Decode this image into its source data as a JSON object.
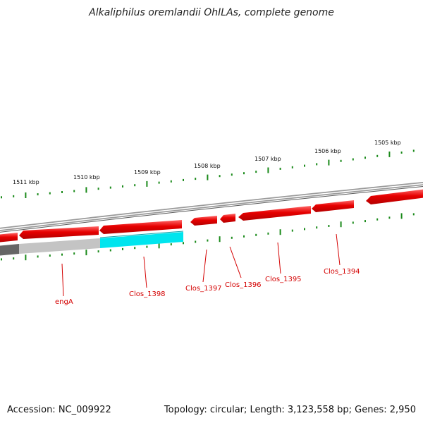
{
  "title": "Alkaliphilus oremlandii OhILAs, complete genome",
  "footer": {
    "accession": "Accession: NC_009922",
    "summary": "Topology: circular; Length: 3,123,558 bp; Genes: 2,950"
  },
  "kbp_labels": [
    "1511 kbp",
    "1510 kbp",
    "1509 kbp",
    "1508 kbp",
    "1507 kbp",
    "1506 kbp",
    "1505 kbp"
  ],
  "genes": {
    "engA": "engA",
    "clos_1398": "Clos_1398",
    "clos_1397": "Clos_1397",
    "clos_1396": "Clos_1396",
    "clos_1395": "Clos_1395",
    "clos_1394": "Clos_1394"
  },
  "colors": {
    "gene": "#e60000",
    "highlight": "#00e5ee",
    "backbone": "#8a8a8a",
    "ticks": "#1a8a1a",
    "label": "#d40000"
  }
}
